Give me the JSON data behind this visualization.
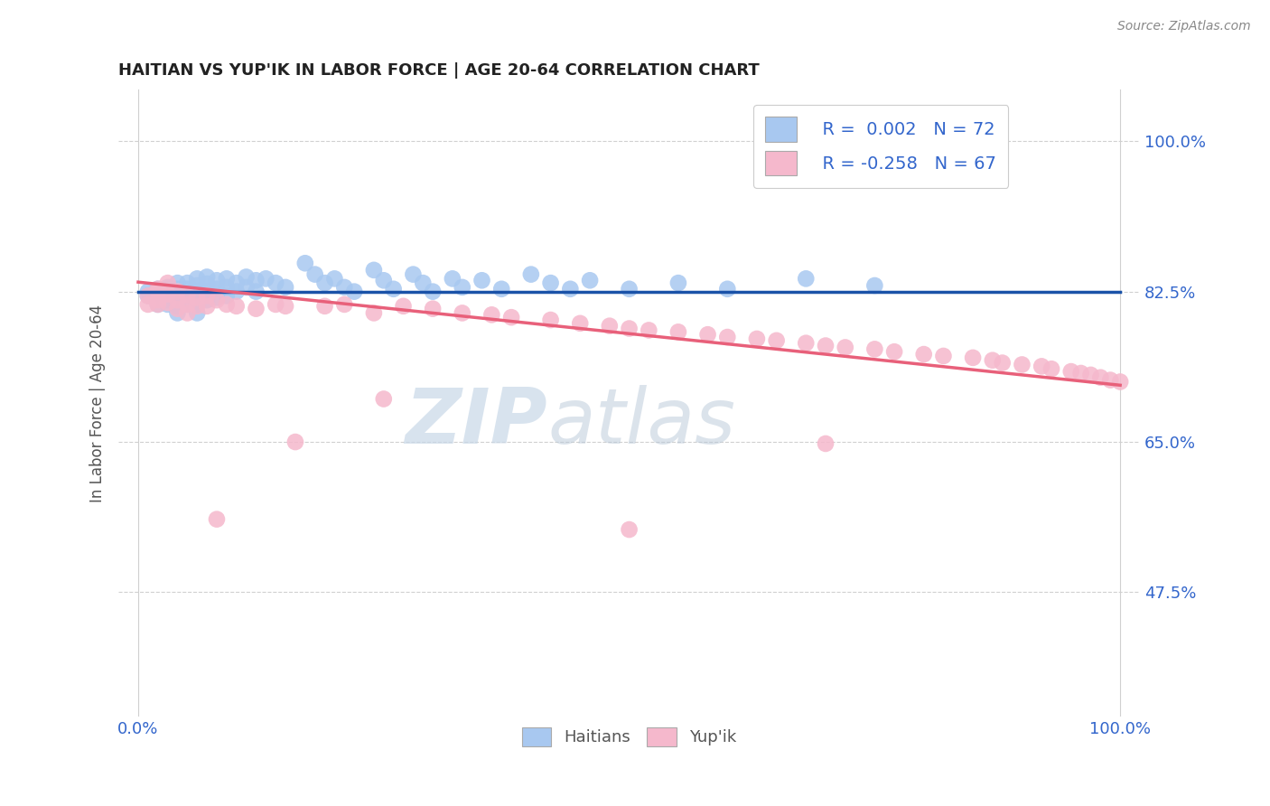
{
  "title": "HAITIAN VS YUP'IK IN LABOR FORCE | AGE 20-64 CORRELATION CHART",
  "source_text": "Source: ZipAtlas.com",
  "ylabel": "In Labor Force | Age 20-64",
  "xlim": [
    -0.02,
    1.02
  ],
  "ylim": [
    0.33,
    1.06
  ],
  "ytick_positions": [
    0.475,
    0.65,
    0.825,
    1.0
  ],
  "ytick_labels": [
    "47.5%",
    "65.0%",
    "82.5%",
    "100.0%"
  ],
  "watermark_zip": "ZIP",
  "watermark_atlas": "atlas",
  "blue_color": "#a8c8f0",
  "pink_color": "#f5b8cc",
  "blue_line_color": "#1a52a8",
  "pink_line_color": "#e8607a",
  "grid_color": "#d0d0d0",
  "blue_intercept": 0.825,
  "blue_slope": 0.0,
  "pink_intercept": 0.836,
  "pink_slope": -0.12,
  "blue_points_x": [
    0.01,
    0.01,
    0.02,
    0.02,
    0.02,
    0.02,
    0.03,
    0.03,
    0.03,
    0.03,
    0.03,
    0.03,
    0.04,
    0.04,
    0.04,
    0.04,
    0.04,
    0.04,
    0.05,
    0.05,
    0.05,
    0.05,
    0.06,
    0.06,
    0.06,
    0.06,
    0.06,
    0.06,
    0.07,
    0.07,
    0.07,
    0.07,
    0.08,
    0.08,
    0.08,
    0.09,
    0.09,
    0.09,
    0.1,
    0.1,
    0.11,
    0.11,
    0.12,
    0.12,
    0.13,
    0.14,
    0.15,
    0.17,
    0.18,
    0.19,
    0.2,
    0.21,
    0.22,
    0.24,
    0.25,
    0.26,
    0.28,
    0.29,
    0.3,
    0.32,
    0.33,
    0.35,
    0.37,
    0.4,
    0.42,
    0.44,
    0.46,
    0.5,
    0.55,
    0.6,
    0.68,
    0.75
  ],
  "blue_points_y": [
    0.825,
    0.82,
    0.828,
    0.822,
    0.816,
    0.81,
    0.83,
    0.825,
    0.82,
    0.815,
    0.828,
    0.81,
    0.835,
    0.828,
    0.82,
    0.815,
    0.808,
    0.8,
    0.835,
    0.828,
    0.82,
    0.81,
    0.84,
    0.832,
    0.825,
    0.818,
    0.81,
    0.8,
    0.842,
    0.834,
    0.825,
    0.815,
    0.838,
    0.828,
    0.818,
    0.84,
    0.83,
    0.82,
    0.835,
    0.825,
    0.842,
    0.83,
    0.838,
    0.825,
    0.84,
    0.835,
    0.83,
    0.858,
    0.845,
    0.835,
    0.84,
    0.83,
    0.825,
    0.85,
    0.838,
    0.828,
    0.845,
    0.835,
    0.825,
    0.84,
    0.83,
    0.838,
    0.828,
    0.845,
    0.835,
    0.828,
    0.838,
    0.828,
    0.835,
    0.828,
    0.84,
    0.832
  ],
  "pink_points_x": [
    0.01,
    0.01,
    0.02,
    0.02,
    0.02,
    0.02,
    0.03,
    0.03,
    0.03,
    0.04,
    0.04,
    0.04,
    0.05,
    0.05,
    0.05,
    0.06,
    0.06,
    0.07,
    0.07,
    0.08,
    0.09,
    0.1,
    0.12,
    0.14,
    0.16,
    0.19,
    0.21,
    0.24,
    0.27,
    0.3,
    0.33,
    0.36,
    0.38,
    0.42,
    0.45,
    0.48,
    0.5,
    0.52,
    0.55,
    0.58,
    0.6,
    0.63,
    0.65,
    0.68,
    0.7,
    0.72,
    0.75,
    0.77,
    0.8,
    0.82,
    0.85,
    0.87,
    0.88,
    0.9,
    0.92,
    0.93,
    0.95,
    0.96,
    0.97,
    0.98,
    0.99,
    1.0,
    0.5,
    0.7,
    0.25,
    0.15,
    0.08
  ],
  "pink_points_y": [
    0.82,
    0.81,
    0.828,
    0.815,
    0.825,
    0.81,
    0.835,
    0.822,
    0.812,
    0.825,
    0.815,
    0.805,
    0.82,
    0.81,
    0.8,
    0.818,
    0.808,
    0.82,
    0.808,
    0.815,
    0.81,
    0.808,
    0.805,
    0.81,
    0.65,
    0.808,
    0.81,
    0.8,
    0.808,
    0.805,
    0.8,
    0.798,
    0.795,
    0.792,
    0.788,
    0.785,
    0.782,
    0.78,
    0.778,
    0.775,
    0.772,
    0.77,
    0.768,
    0.765,
    0.762,
    0.76,
    0.758,
    0.755,
    0.752,
    0.75,
    0.748,
    0.745,
    0.742,
    0.74,
    0.738,
    0.735,
    0.732,
    0.73,
    0.728,
    0.725,
    0.722,
    0.72,
    0.548,
    0.648,
    0.7,
    0.808,
    0.56
  ]
}
